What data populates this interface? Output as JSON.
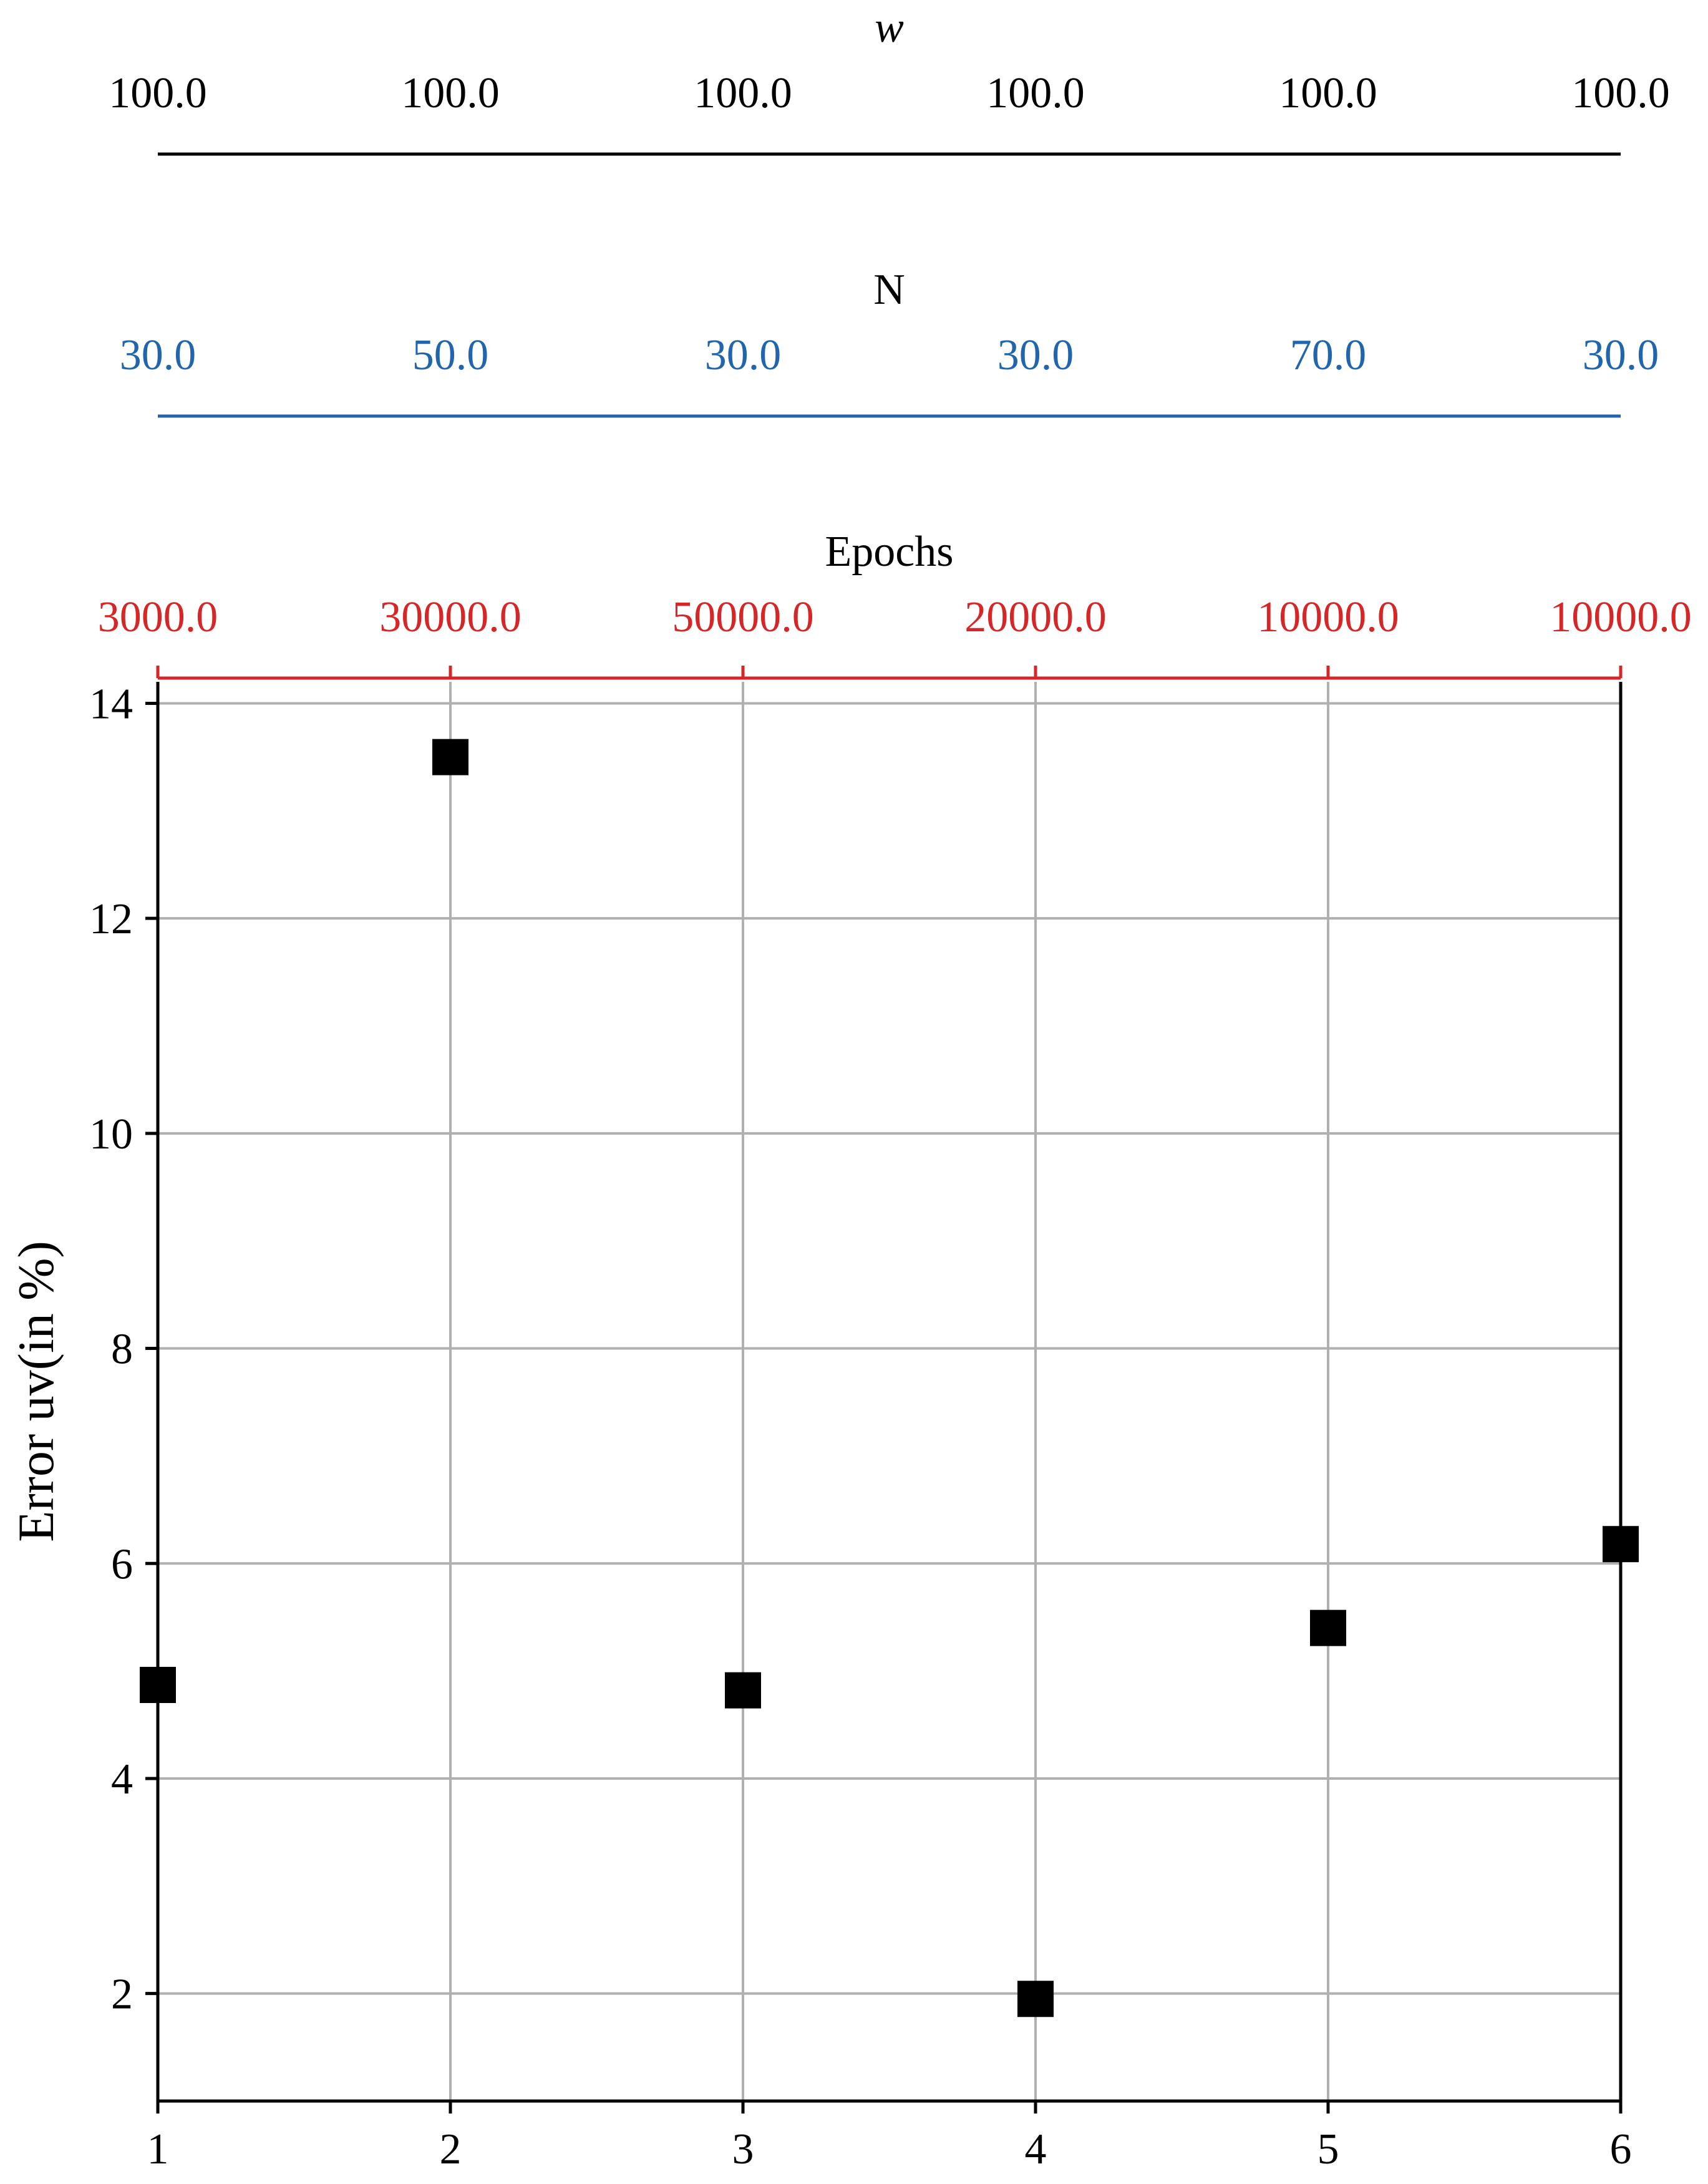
{
  "chart_data": {
    "type": "scatter",
    "x": [
      1,
      2,
      3,
      4,
      5,
      6
    ],
    "y": [
      4.87,
      13.5,
      4.82,
      1.95,
      5.4,
      6.18
    ],
    "xlim": [
      1,
      6
    ],
    "ylim": [
      1,
      14.2
    ],
    "xticks": [
      "1",
      "2",
      "3",
      "4",
      "5",
      "6"
    ],
    "yticks": [
      "2",
      "4",
      "6",
      "8",
      "10",
      "12",
      "14"
    ],
    "ytick_values": [
      2,
      4,
      6,
      8,
      10,
      12,
      14
    ],
    "ylabel": "Error  uv(in %)",
    "grid": true,
    "marker": "square",
    "marker_color": "#000000",
    "top_axes": [
      {
        "label": "w",
        "color": "#000000",
        "tick_labels": [
          "100.0",
          "100.0",
          "100.0",
          "100.0",
          "100.0",
          "100.0"
        ]
      },
      {
        "label": "N",
        "color": "#2166ac",
        "tick_labels": [
          "30.0",
          "50.0",
          "30.0",
          "30.0",
          "70.0",
          "30.0"
        ]
      },
      {
        "label": "Epochs",
        "color": "#d62728",
        "tick_labels": [
          "3000.0",
          "30000.0",
          "50000.0",
          "20000.0",
          "10000.0",
          "10000.0"
        ]
      }
    ]
  }
}
